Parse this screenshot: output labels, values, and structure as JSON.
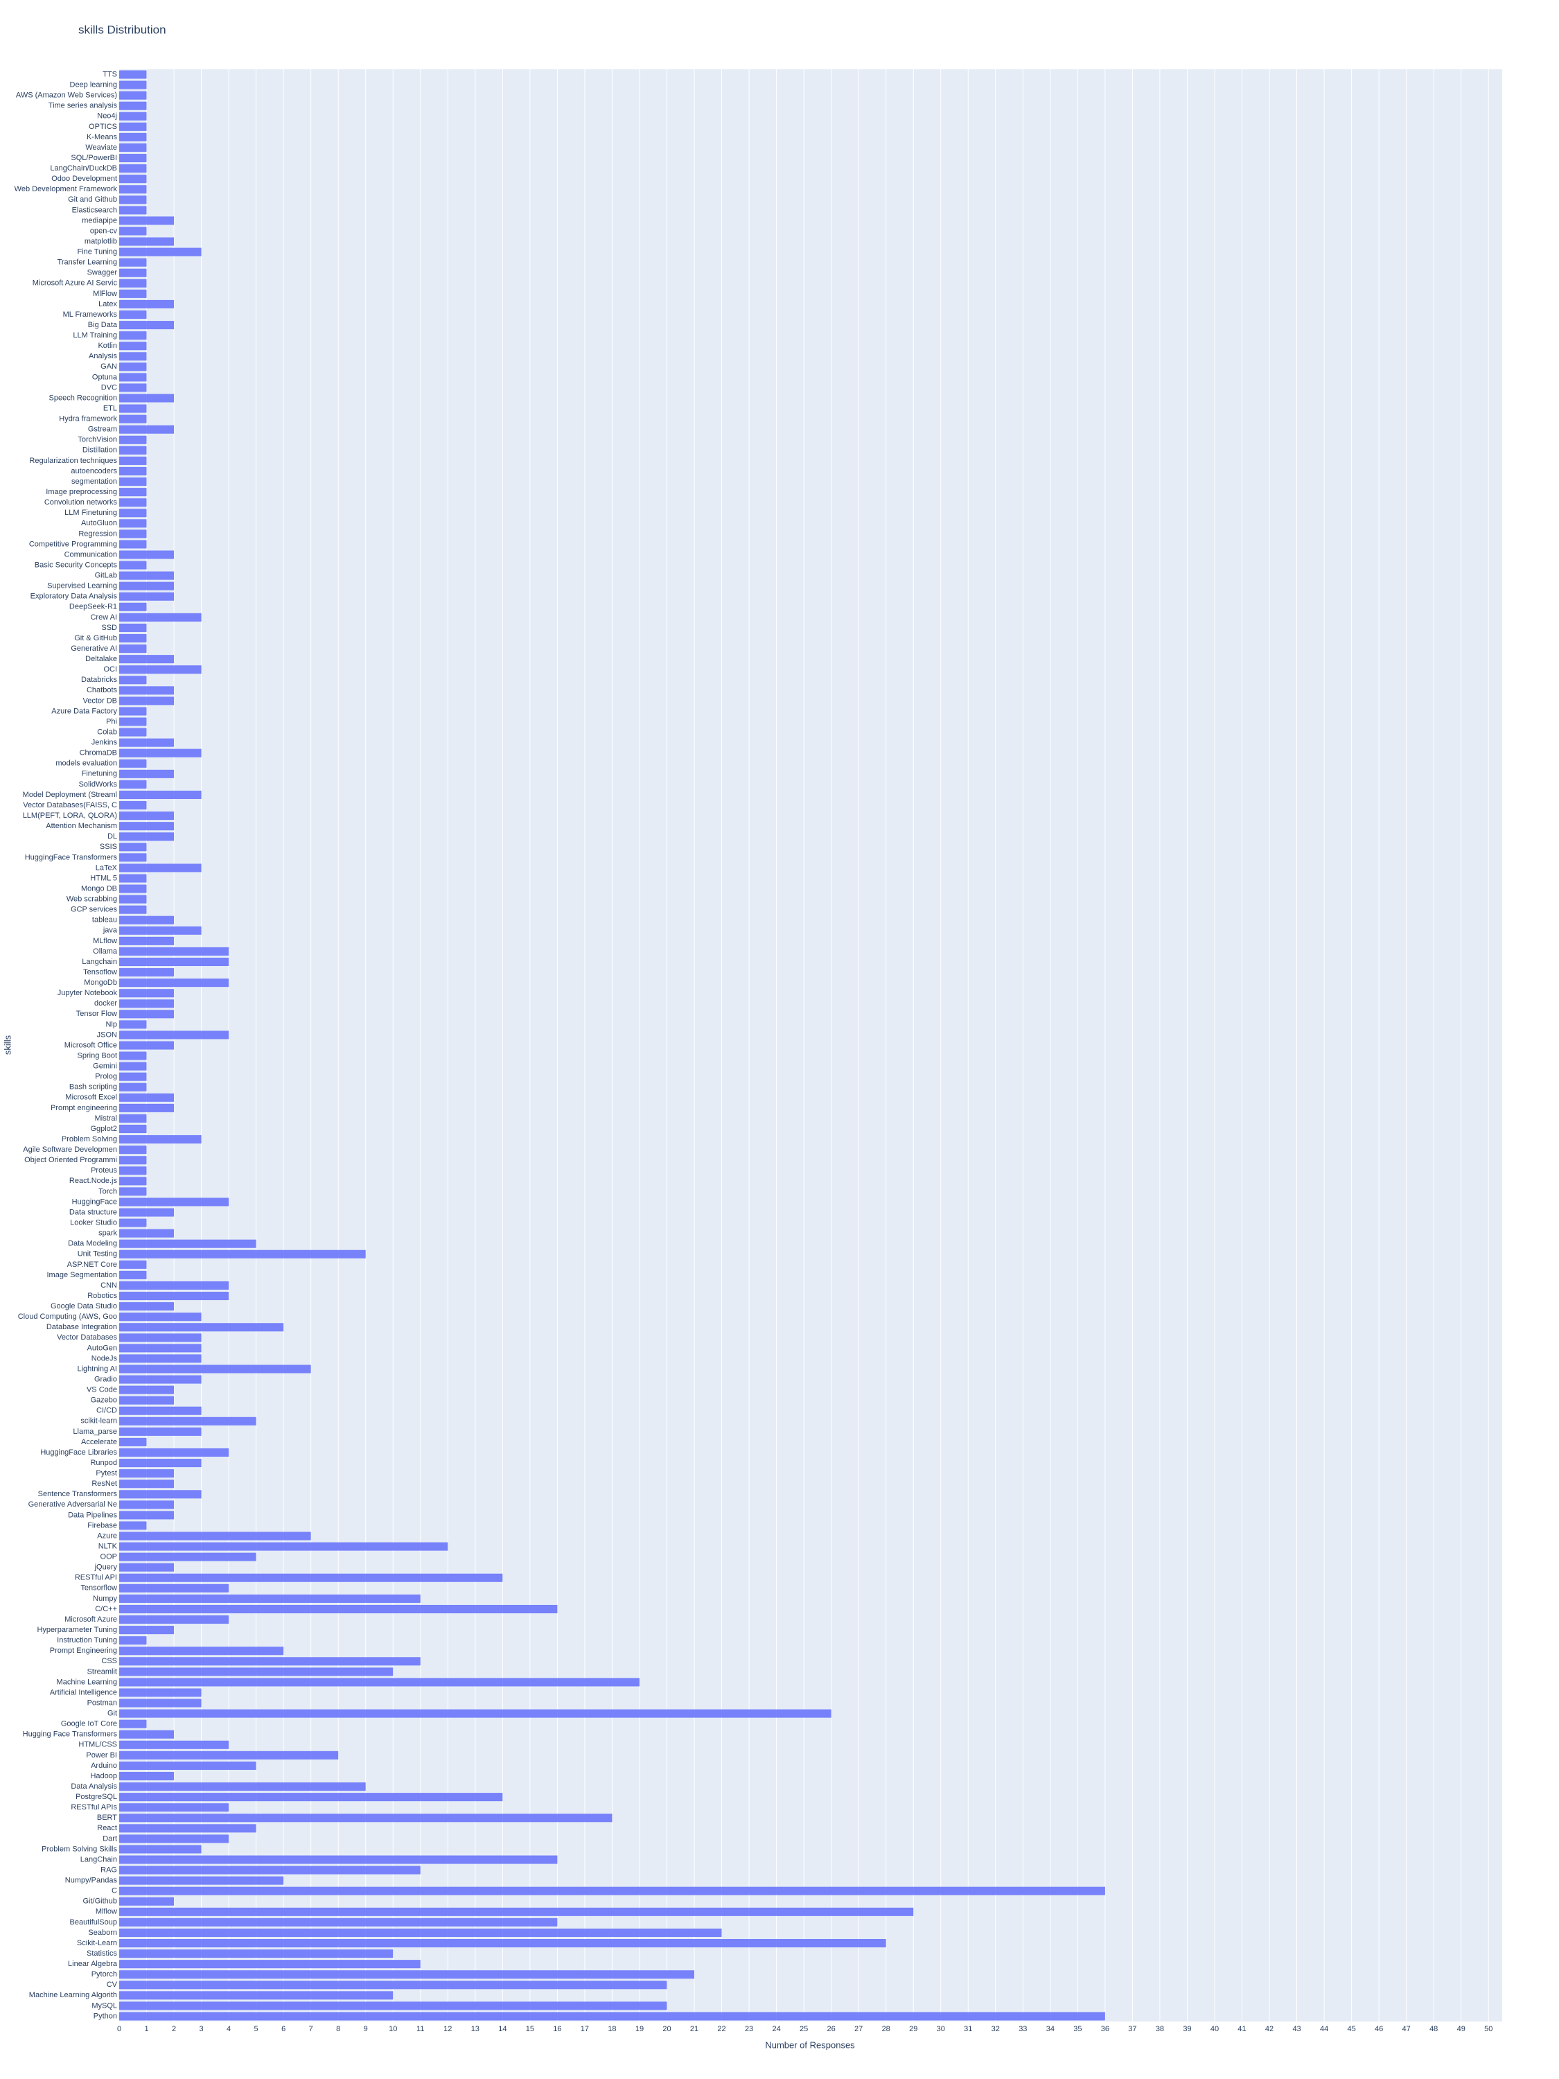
{
  "chart_data": {
    "type": "bar",
    "orientation": "horizontal",
    "title": "skills Distribution",
    "xlabel": "Number of Responses",
    "ylabel": "skills",
    "color": "#636efa",
    "grid": true,
    "categories": [
      "TTS",
      "Deep learning",
      "AWS (Amazon Web Services)",
      "Time series analysis",
      "Neo4j",
      "OPTICS",
      "K-Means",
      "Weaviate",
      "SQL/PowerBI",
      "LangChain/DuckDB",
      "Odoo Development",
      "Web Development Framework",
      "Git and Github",
      "Elasticsearch",
      "mediapipe",
      "open-cv",
      "matplotlib",
      "Fine Tuning",
      "Transfer Learning",
      "Swagger",
      "Microsoft Azure AI Servic",
      "MlFlow",
      "Latex",
      "ML Frameworks",
      "Big Data",
      "LLM Training",
      "Kotlin",
      "Analysis",
      "GAN",
      "Optuna",
      "DVC",
      "Speech Recognition",
      "ETL",
      "Hydra framework",
      "Gstream",
      "TorchVision",
      "Distillation",
      "Regularization techniques",
      "autoencoders",
      "segmentation",
      "Image preprocessing",
      "Convolution networks",
      "LLM Finetuning",
      "AutoGluon",
      "Regression",
      "Competitive Programming",
      "Communication",
      "Basic Security Concepts",
      "GitLab",
      "Supervised Learning",
      "Exploratory Data Analysis",
      "DeepSeek-R1",
      "Crew AI",
      "SSD",
      "Git & GitHub",
      "Generative AI",
      "Deltalake",
      "OCI",
      "Databricks",
      "Chatbots",
      "Vector DB",
      "Azure Data Factory",
      "Phi",
      "Colab",
      "Jenkins",
      "ChromaDB",
      "models evaluation",
      "Finetuning",
      "SolidWorks",
      "Model Deployment (Streaml",
      "Vector Databases(FAISS, C",
      "LLM(PEFT, LORA, QLORA)",
      "Attention Mechanism",
      "DL",
      "SSIS",
      "HuggingFace Transformers",
      "LaTeX",
      "HTML 5",
      "Mongo DB",
      "Web scrabbing",
      "GCP services",
      "tableau",
      "java",
      "MLflow",
      "Ollama",
      "Langchain",
      "Tensoflow",
      "MongoDb",
      "Jupyter Notebook",
      "docker",
      "Tensor Flow",
      "Nlp",
      "JSON",
      "Microsoft Office",
      "Spring Boot",
      "Gemini",
      "Prolog",
      "Bash scripting",
      "Microsoft Excel",
      "Prompt engineering",
      "Mistral",
      "Ggplot2",
      "Problem Solving",
      "Agile Software Developmen",
      "Object Oriented Programmi",
      "Proteus",
      "React.Node.js",
      "Torch",
      "HuggingFace",
      "Data structure",
      "Looker Studio",
      "spark",
      "Data Modeling",
      "Unit Testing",
      "ASP.NET Core",
      "Image Segmentation",
      "CNN",
      "Robotics",
      "Google Data Studio",
      "Cloud Computing (AWS, Goo",
      "Database Integration",
      "Vector Databases",
      "AutoGen",
      "NodeJs",
      "Lightning AI",
      "Gradio",
      "VS Code",
      "Gazebo",
      "CI/CD",
      "scikit-learn",
      "Llama_parse",
      "Accelerate",
      "HuggingFace Libraries",
      "Runpod",
      "Pytest",
      "ResNet",
      "Sentence Transformers",
      "Generative Adversarial Ne",
      "Data Pipelines",
      "Firebase",
      "Azure",
      "NLTK",
      "OOP",
      "jQuery",
      "RESTful API",
      "Tensorflow",
      "Numpy",
      "C/C++",
      "Microsoft Azure",
      "Hyperparameter Tuning",
      "Instruction Tuning",
      "Prompt Engineering",
      "CSS",
      "Streamlit",
      "Machine Learning",
      "Artificial Intelligence",
      "Postman",
      "Git",
      "Google IoT Core",
      "Hugging Face Transformers",
      "HTML/CSS",
      "Power BI",
      "Arduino",
      "Hadoop",
      "Data Analysis",
      "PostgreSQL",
      "RESTful APIs",
      "BERT",
      "React",
      "Dart",
      "Problem Solving Skills",
      "LangChain",
      "RAG",
      "Numpy/Pandas",
      "C",
      "Git/Github",
      "Mlflow",
      "BeautifulSoup",
      "Seaborn",
      "Scikit-Learn",
      "Statistics",
      "Linear Algebra",
      "Pytorch",
      "CV",
      "Machine Learning Algorith",
      "MySQL",
      "Python"
    ],
    "values": [
      1,
      1,
      1,
      1,
      1,
      1,
      1,
      1,
      1,
      1,
      1,
      1,
      1,
      1,
      2,
      1,
      2,
      3,
      1,
      1,
      1,
      1,
      2,
      1,
      2,
      1,
      1,
      1,
      1,
      1,
      1,
      2,
      1,
      1,
      2,
      1,
      1,
      1,
      1,
      1,
      1,
      1,
      1,
      1,
      1,
      1,
      2,
      1,
      2,
      2,
      2,
      1,
      3,
      1,
      1,
      1,
      2,
      3,
      1,
      2,
      2,
      1,
      1,
      1,
      2,
      3,
      1,
      2,
      1,
      3,
      1,
      2,
      2,
      2,
      1,
      1,
      3,
      1,
      1,
      1,
      1,
      2,
      3,
      2,
      4,
      4,
      2,
      4,
      2,
      2,
      2,
      1,
      4,
      2,
      1,
      1,
      1,
      1,
      2,
      2,
      1,
      1,
      3,
      1,
      1,
      1,
      1,
      1,
      4,
      2,
      1,
      2,
      5,
      9,
      1,
      1,
      4,
      4,
      2,
      3,
      6,
      3,
      3,
      3,
      7,
      3,
      2,
      2,
      3,
      5,
      3,
      1,
      4,
      3,
      2,
      2,
      3,
      2,
      2,
      1,
      7,
      12,
      5,
      2,
      14,
      4,
      11,
      16,
      4,
      2,
      1,
      6,
      11,
      10,
      19,
      3,
      3,
      26,
      1,
      2,
      4,
      8,
      5,
      2,
      9,
      14,
      4,
      18,
      5,
      4,
      3,
      16,
      11,
      6,
      36,
      2,
      29,
      16,
      22,
      28,
      10,
      11,
      21,
      20,
      10,
      20,
      36
    ],
    "xlim": [
      0,
      50.5
    ],
    "xticks": [
      0,
      1,
      2,
      3,
      4,
      5,
      6,
      7,
      8,
      9,
      10,
      11,
      12,
      13,
      14,
      15,
      16,
      17,
      18,
      19,
      20,
      21,
      22,
      23,
      24,
      25,
      26,
      27,
      28,
      29,
      30,
      31,
      32,
      33,
      34,
      35,
      36,
      37,
      38,
      39,
      40,
      41,
      42,
      43,
      44,
      45,
      46,
      47,
      48,
      49,
      50
    ]
  }
}
